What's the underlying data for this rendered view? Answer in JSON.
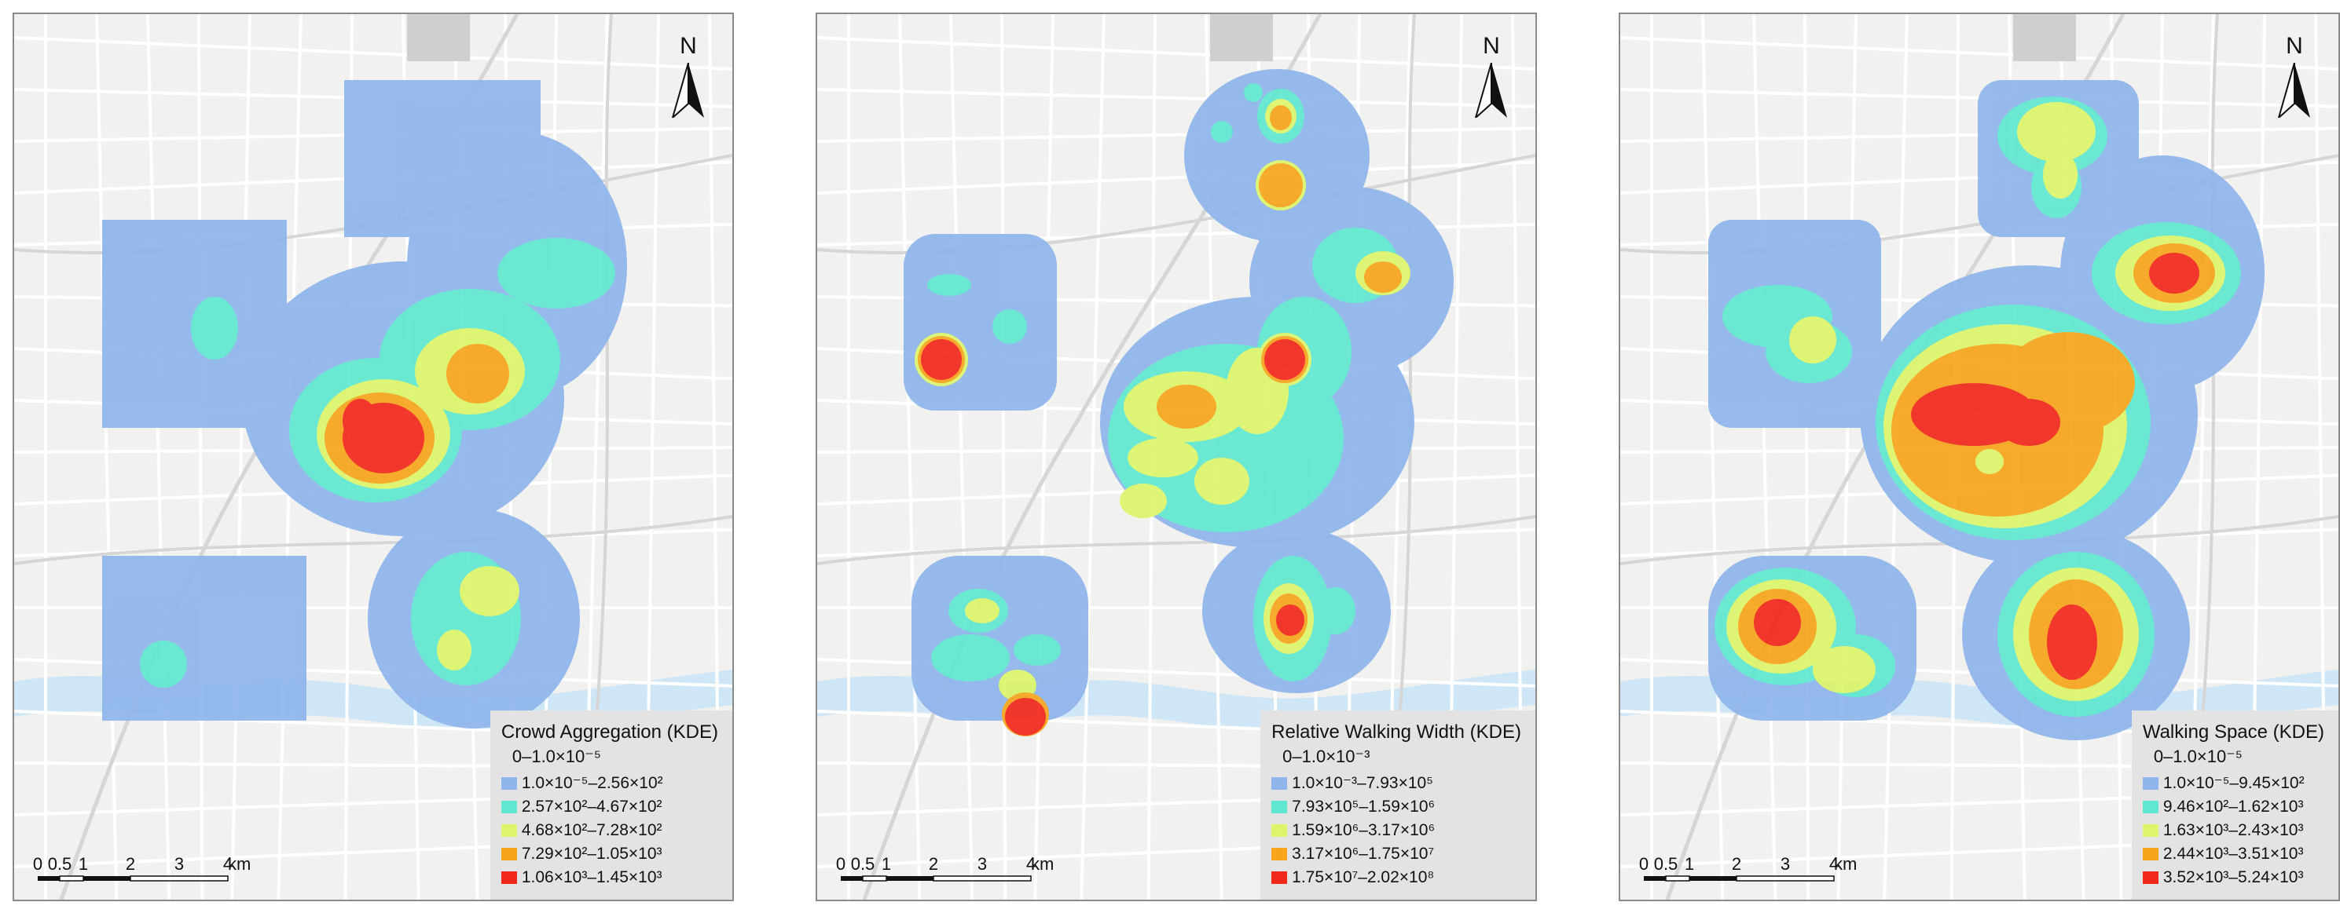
{
  "panels": [
    {
      "legend": {
        "title": "Crowd Aggregation (KDE)",
        "zero": "0–1.0×10⁻⁵",
        "classes": [
          {
            "label": "1.0×10⁻⁵–2.56×10²",
            "color": "#8fb5ec"
          },
          {
            "label": "2.57×10²–4.67×10²",
            "color": "#5fe8cf"
          },
          {
            "label": "4.68×10²–7.28×10²",
            "color": "#ddf56a"
          },
          {
            "label": "7.29×10²–1.05×10³",
            "color": "#f7a51c"
          },
          {
            "label": "1.06×10³–1.45×10³",
            "color": "#f2281c"
          }
        ]
      }
    },
    {
      "legend": {
        "title": "Relative Walking Width (KDE)",
        "zero": "0–1.0×10⁻³",
        "classes": [
          {
            "label": "1.0×10⁻³–7.93×10⁵",
            "color": "#8fb5ec"
          },
          {
            "label": "7.93×10⁵–1.59×10⁶",
            "color": "#5fe8cf"
          },
          {
            "label": "1.59×10⁶–3.17×10⁶",
            "color": "#ddf56a"
          },
          {
            "label": "3.17×10⁶–1.75×10⁷",
            "color": "#f7a51c"
          },
          {
            "label": "1.75×10⁷–2.02×10⁸",
            "color": "#f2281c"
          }
        ]
      }
    },
    {
      "legend": {
        "title": "Walking Space (KDE)",
        "zero": "0–1.0×10⁻⁵",
        "classes": [
          {
            "label": "1.0×10⁻⁵–9.45×10²",
            "color": "#8fb5ec"
          },
          {
            "label": "9.46×10²–1.62×10³",
            "color": "#5fe8cf"
          },
          {
            "label": "1.63×10³–2.43×10³",
            "color": "#ddf56a"
          },
          {
            "label": "2.44×10³–3.51×10³",
            "color": "#f7a51c"
          },
          {
            "label": "3.52×10³–5.24×10³",
            "color": "#f2281c"
          }
        ]
      }
    }
  ],
  "north_label": "N",
  "north_icon": "north-arrow-icon",
  "scale": {
    "ticks": [
      "0",
      "0.5",
      "1",
      "2",
      "3",
      "4"
    ],
    "unit": "km"
  },
  "colors": {
    "map_bg": "#f1f1ef",
    "river": "#cfe6f7",
    "road": "#ffffff",
    "road_major": "#d6d6d6"
  }
}
